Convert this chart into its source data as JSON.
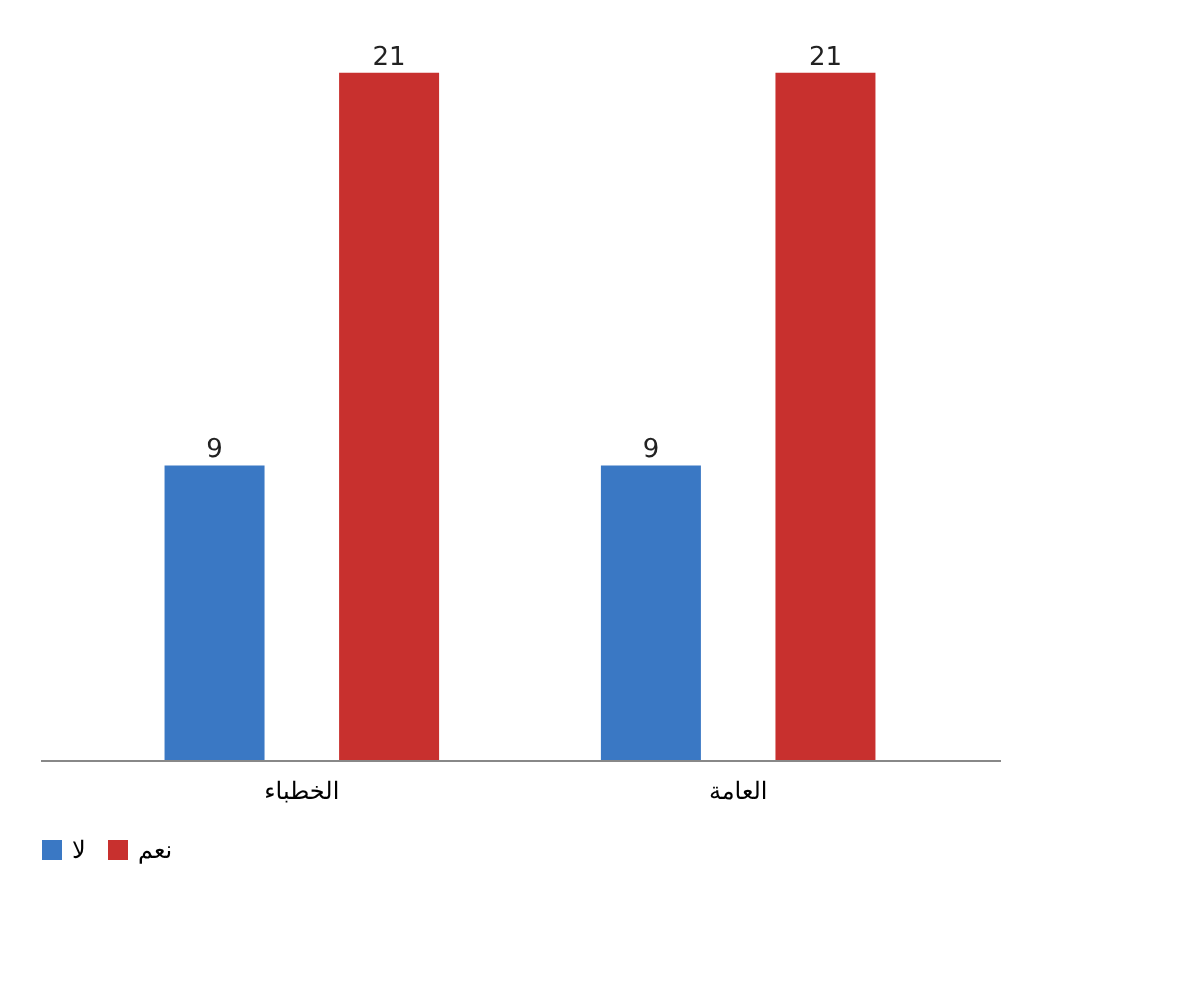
{
  "chart_data": {
    "type": "bar",
    "categories": [
      "الخطباء",
      "العامة"
    ],
    "series": [
      {
        "name": "لا",
        "color": "#3a78c4",
        "values": [
          9,
          9
        ]
      },
      {
        "name": "نعم",
        "color": "#c8302e",
        "values": [
          21,
          21
        ]
      }
    ],
    "data_labels": true,
    "legend": "bottom",
    "tick_labels": "x"
  }
}
